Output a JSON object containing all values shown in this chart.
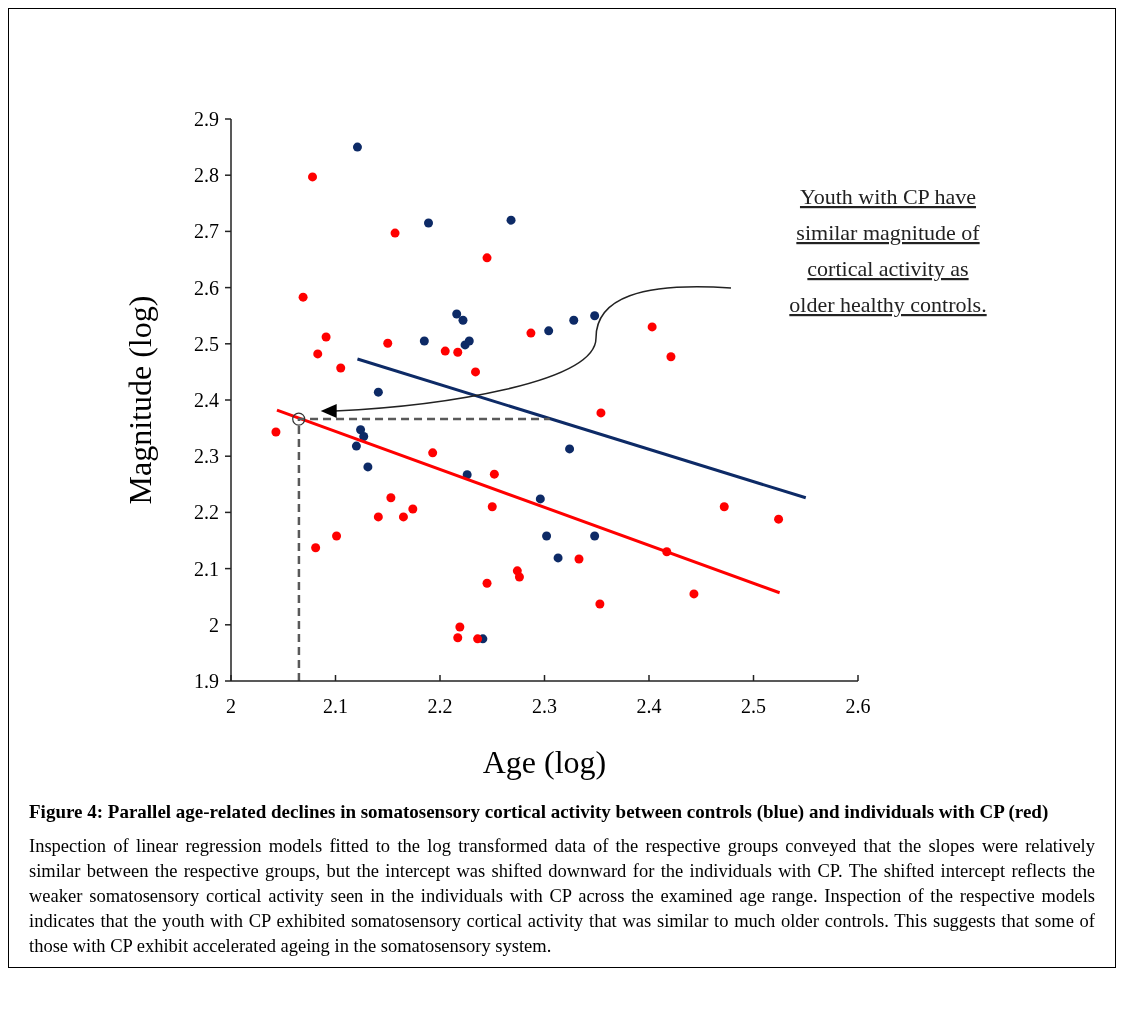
{
  "chart_data": {
    "type": "scatter",
    "title": "Figure 4: Parallel age-related declines in somatosensory cortical activity between controls (blue) and individuals with CP (red)",
    "xlabel": "Age (log)",
    "ylabel": "Magnitude (log)",
    "xlim": [
      2,
      2.6
    ],
    "xticks": [
      2,
      2.1,
      2.2,
      2.3,
      2.4,
      2.5,
      2.6
    ],
    "ylim": [
      1.9,
      2.9
    ],
    "yticks": [
      1.9,
      2,
      2.1,
      2.2,
      2.3,
      2.4,
      2.5,
      2.6,
      2.7,
      2.8,
      2.9
    ],
    "grid": false,
    "marker": "circle",
    "series": [
      {
        "color": "#0d2a66",
        "x": [
          2.121,
          2.189,
          2.268,
          2.216,
          2.222,
          2.185,
          2.224,
          2.228,
          2.304,
          2.328,
          2.348,
          2.141,
          2.124,
          2.127,
          2.12,
          2.131,
          2.226,
          2.296,
          2.302,
          2.324,
          2.313,
          2.348,
          2.241
        ],
        "values": [
          2.85,
          2.715,
          2.72,
          2.553,
          2.542,
          2.505,
          2.498,
          2.505,
          2.523,
          2.542,
          2.55,
          2.414,
          2.347,
          2.335,
          2.318,
          2.281,
          2.267,
          2.224,
          2.158,
          2.313,
          2.119,
          2.158,
          1.975
        ]
      },
      {
        "color": "#ff0000",
        "x": [
          2.078,
          2.157,
          2.245,
          2.069,
          2.091,
          2.083,
          2.15,
          2.105,
          2.205,
          2.217,
          2.234,
          2.287,
          2.403,
          2.421,
          2.354,
          2.043,
          2.193,
          2.081,
          2.101,
          2.153,
          2.141,
          2.165,
          2.174,
          2.252,
          2.25,
          2.245,
          2.274,
          2.276,
          2.219,
          2.217,
          2.236,
          2.333,
          2.353,
          2.472,
          2.524,
          2.417,
          2.443
        ],
        "values": [
          2.797,
          2.697,
          2.653,
          2.583,
          2.512,
          2.482,
          2.501,
          2.457,
          2.487,
          2.485,
          2.45,
          2.519,
          2.53,
          2.477,
          2.377,
          2.343,
          2.306,
          2.137,
          2.158,
          2.226,
          2.192,
          2.192,
          2.206,
          2.268,
          2.21,
          2.074,
          2.096,
          2.085,
          1.996,
          1.977,
          1.975,
          2.117,
          2.037,
          2.21,
          2.188,
          2.13,
          2.055
        ]
      },
      {
        "type": "line",
        "color": "#0d2a66",
        "marker": "none",
        "x": [
          2.121,
          2.55
        ],
        "values": [
          2.473,
          2.226
        ]
      },
      {
        "type": "line",
        "color": "#ff0000",
        "marker": "none",
        "x": [
          2.044,
          2.525
        ],
        "values": [
          2.382,
          2.057
        ]
      },
      {
        "type": "line",
        "color": "#595959",
        "marker": "none",
        "line_style": "dashed",
        "x": [
          2.065,
          2.065,
          2.305
        ],
        "values": [
          1.9,
          2.366,
          2.366
        ]
      }
    ],
    "annotations": [
      "Youth with CP have\nsimilar  magnitude of\ncortical activity as\nolder healthy controls.",
      "Inspection of linear regression models fitted to the log transformed data of the respective groups conveyed that the slopes were relatively similar between the respective groups, but the intercept was shifted downward for the individuals with CP. The shifted intercept reflects the weaker somatosensory cortical activity seen in the individuals with CP across the examined age range. Inspection of the respective models indicates that the youth with CP exhibited somatosensory cortical activity that was similar to much older controls. This suggests that some of those with CP exhibit accelerated ageing in the somatosensory system."
    ]
  }
}
